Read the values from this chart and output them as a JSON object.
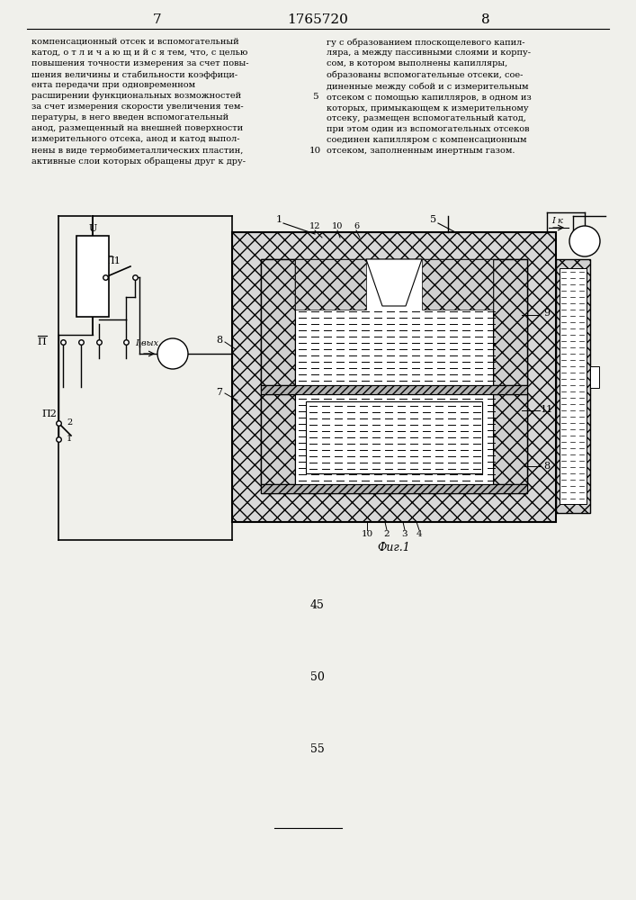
{
  "page_number_left": "7",
  "page_number_center": "1765720",
  "page_number_right": "8",
  "text_left": "компенсационный отсек и вспомогательный\nкатод, о т л и ч а ю щ и й с я тем, что, с целью\nповышения точности измерения за счет повы-\nшения величины и стабильности коэффици-\nента передачи при одновременном\nрасширении функциональных возможностей\nза счет измерения скорости увеличения тем-\nпературы, в него введен вспомогательный\nанод, размещенный на внешней поверхности\nизмерительного отсека, анод и катод выпол-\nнены в виде термобиметаллических пластин,\nактивные слои которых обращены друг к дру-",
  "text_right": "гу с образованием плоскощелевого капил-\nляра, а между пассивными слоями и корпу-\nсом, в котором выполнены капилляры,\nобразованы вспомогательные отсеки, сое-\nдиненные между собой и с измерительным\nотсеком с помощью капилляров, в одном из\nкоторых, примыкающем к измерительному\nотсеку, размещен вспомогательный катод,\nпри этом один из вспомогательных отсеков\nсоединен капилляром с компенсационным\nотсеком, заполненным инертным газом.",
  "line_number_5": "5",
  "line_number_10": "10",
  "fig_label": "Фиг.1",
  "bottom_numbers": [
    "45",
    "50",
    "55"
  ],
  "bg_color": "#f0f0eb"
}
